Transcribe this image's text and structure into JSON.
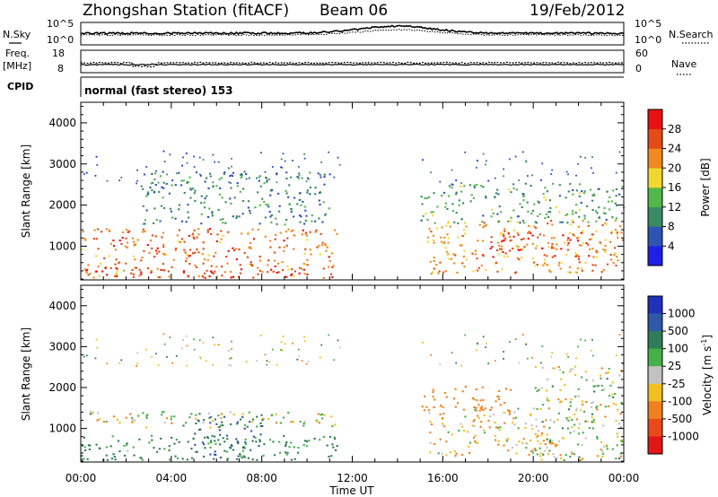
{
  "header": {
    "title": "Zhongshan Station (fitACF)",
    "beam": "Beam 06",
    "date": "19/Feb/2012"
  },
  "strip_nsky": {
    "left_label": "N.Sky",
    "right_label": "N.Search",
    "left_ticks": [
      "10^5",
      "10^0"
    ],
    "right_ticks": [
      "10^5",
      "10^0"
    ]
  },
  "strip_freq": {
    "left_label_1": "Freq.",
    "left_label_2": "[MHz]",
    "right_label": "Nave",
    "left_ticks": [
      "18",
      "8"
    ],
    "right_ticks": [
      "60",
      "0"
    ]
  },
  "cpid": {
    "label": "CPID",
    "text": "normal (fast stereo) 153"
  },
  "panels": {
    "ylabel": "Slant Range [km]",
    "yticks": [
      "1000",
      "2000",
      "3000",
      "4000"
    ],
    "xlabel": "Time UT",
    "xticks": [
      "00:00",
      "04:00",
      "08:00",
      "12:00",
      "16:00",
      "20:00",
      "00:00"
    ]
  },
  "colorbars": {
    "power_label": "Power [dB]",
    "power_ticks": [
      "4",
      "8",
      "12",
      "16",
      "20",
      "24",
      "28"
    ],
    "power_colors": [
      "#1f1fe6",
      "#2e55b4",
      "#3a8a64",
      "#52b648",
      "#f0d830",
      "#f08a1e",
      "#e34c16",
      "#e81010"
    ],
    "velocity_label": "Velocity [m s",
    "velocity_superscript": "-1",
    "velocity_label_end": "]",
    "velocity_ticks": [
      "1000",
      "500",
      "100",
      "25",
      "-25",
      "-100",
      "-500",
      "-1000"
    ],
    "velocity_colors": [
      "#2030b8",
      "#2e58a8",
      "#2f7c58",
      "#45b048",
      "#c2c2c2",
      "#f0c020",
      "#f08020",
      "#e84a18",
      "#e21616"
    ]
  },
  "chart_data": [
    {
      "type": "heatmap",
      "name": "power-panel",
      "x_range": [
        "00:00",
        "00:00"
      ],
      "ylim": [
        180,
        4500
      ],
      "series_summary": [
        {
          "t_start": 0.0,
          "t_end": 11.3,
          "range_start": 200,
          "range_end": 1400,
          "value_db": 24
        },
        {
          "t_start": 0.0,
          "t_end": 10.0,
          "range_start": 200,
          "range_end": 450,
          "value_db": 28
        },
        {
          "t_start": 15.3,
          "t_end": 24.0,
          "range_start": 300,
          "range_end": 1600,
          "value_db": 22
        },
        {
          "t_start": 18.0,
          "t_end": 22.5,
          "range_start": 700,
          "range_end": 1300,
          "value_db": 27
        },
        {
          "t_start": 2.5,
          "t_end": 11.0,
          "range_start": 1500,
          "range_end": 2800,
          "value_db": 10
        },
        {
          "t_start": 15.0,
          "t_end": 24.0,
          "range_start": 1500,
          "range_end": 2500,
          "value_db": 12
        }
      ]
    },
    {
      "type": "heatmap",
      "name": "velocity-panel",
      "x_range": [
        "00:00",
        "00:00"
      ],
      "ylim": [
        180,
        4500
      ],
      "series_summary": [
        {
          "t_start": 0.0,
          "t_end": 11.3,
          "range_start": 200,
          "range_end": 800,
          "value_ms": 150
        },
        {
          "t_start": 0.0,
          "t_end": 11.3,
          "range_start": 1000,
          "range_end": 1400,
          "value_ms": 0
        },
        {
          "t_start": 5.0,
          "t_end": 8.0,
          "range_start": 200,
          "range_end": 1300,
          "value_ms": 500
        },
        {
          "t_start": 15.3,
          "t_end": 21.0,
          "range_start": 300,
          "range_end": 1500,
          "value_ms": -80
        },
        {
          "t_start": 20.0,
          "t_end": 24.0,
          "range_start": 200,
          "range_end": 2500,
          "value_ms": 0
        },
        {
          "t_start": 15.0,
          "t_end": 19.0,
          "range_start": 1400,
          "range_end": 2000,
          "value_ms": -300
        }
      ]
    }
  ]
}
